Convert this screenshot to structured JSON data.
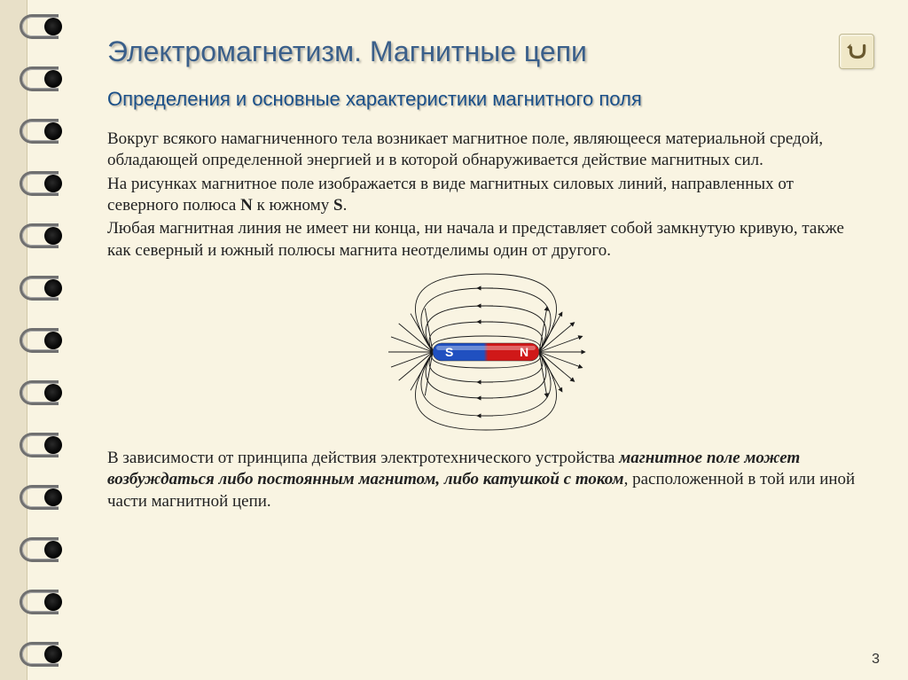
{
  "title": "Электромагнетизм.  Магнитные цепи",
  "subtitle": "Определения и основные характеристики магнитного поля",
  "paragraphs": {
    "p1": "Вокруг всякого намагниченного тела возникает магнитное поле, являющееся материальной средой, обладающей определенной энергией и в которой обнаруживается действие магнитных сил.",
    "p2a": "На рисунках магнитное поле изображается в виде магнитных силовых линий, направленных от северного полюса ",
    "p2b": " к южному ",
    "p2c": ".",
    "p3": "Любая магнитная линия не имеет ни конца, ни начала и представляет собой замкнутую кривую, также как северный и южный полюсы магнита неотделимы один от другого.",
    "p4a": "В зависимости от принципа действия электротехнического устройства ",
    "p4b": "магнитное поле может возбуждаться либо постоянным магнитом, либо катушкой с током",
    "p4c": ", расположенной в той или иной части магнитной цепи."
  },
  "pole_n": "N",
  "pole_s": "S",
  "magnet": {
    "s_label": "S",
    "n_label": "N",
    "s_color": "#2050c0",
    "n_color": "#d01818",
    "line_color": "#1a1a1a",
    "label_color": "#ffffff"
  },
  "page_number": "3",
  "colors": {
    "page_bg": "#f9f4e2",
    "title": "#3a5f8a",
    "subtitle": "#1a4f88",
    "text": "#222222"
  },
  "typography": {
    "title_fontsize": 32,
    "subtitle_fontsize": 22,
    "body_fontsize": 19
  },
  "binding": {
    "holes": 13
  }
}
